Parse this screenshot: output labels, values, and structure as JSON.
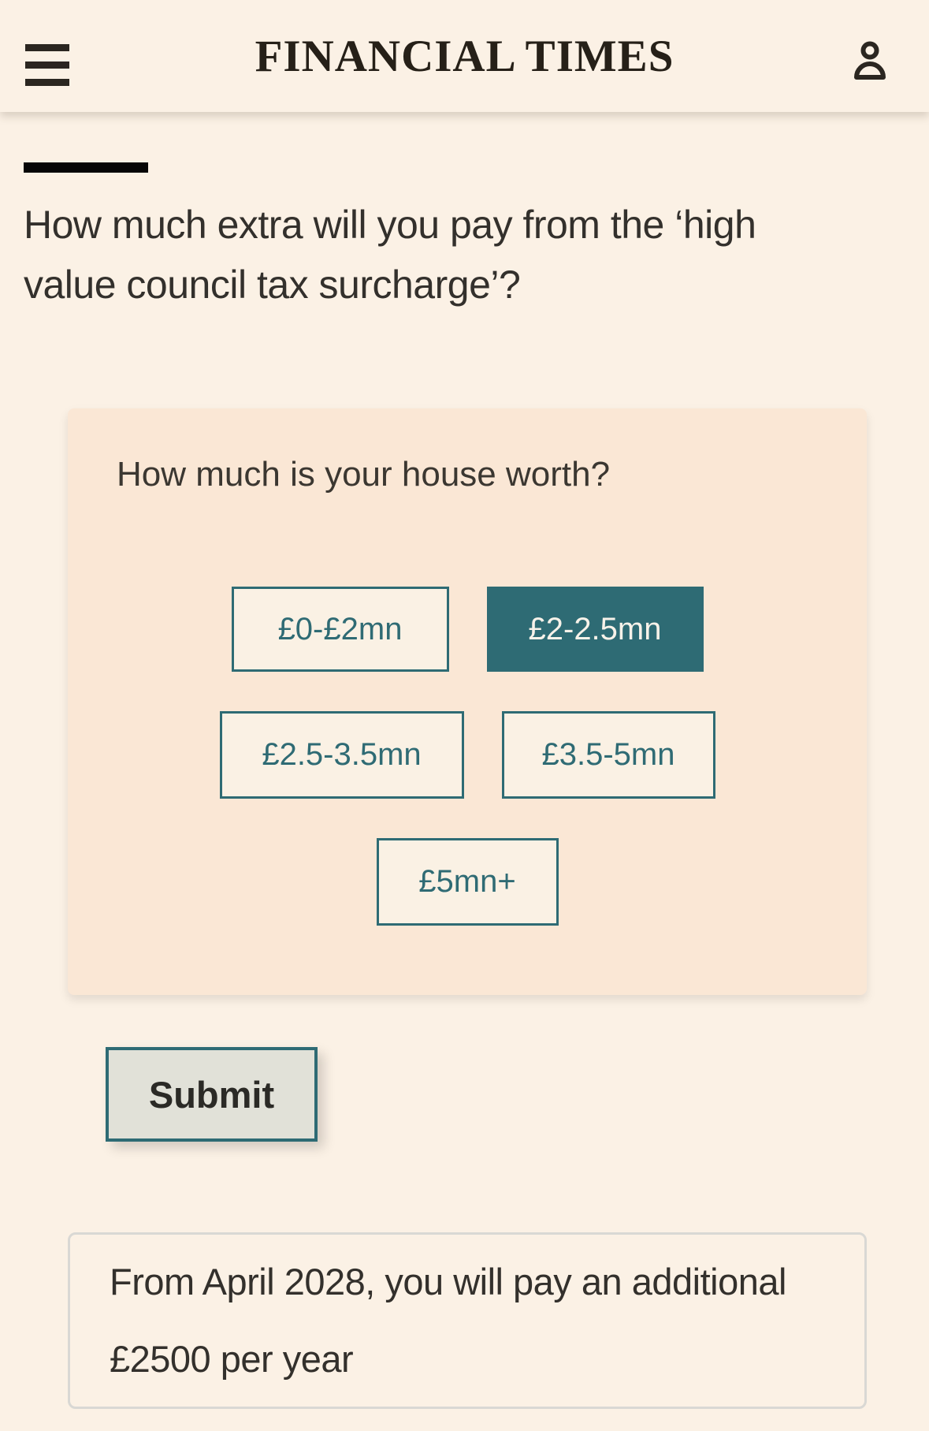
{
  "header": {
    "brand": "FINANCIAL TIMES",
    "icons": {
      "menu": "hamburger-icon",
      "account": "person-icon"
    }
  },
  "article": {
    "headline": "How much extra will you pay from the ‘high value council tax surcharge’?"
  },
  "calculator": {
    "question": "How much is your house worth?",
    "options": [
      {
        "label": "£0-£2mn",
        "selected": false
      },
      {
        "label": "£2-2.5mn",
        "selected": true
      },
      {
        "label": "£2.5-3.5mn",
        "selected": false
      },
      {
        "label": "£3.5-5mn",
        "selected": false
      },
      {
        "label": "£5mn+",
        "selected": false
      }
    ],
    "submit_label": "Submit",
    "result": "From April 2028, you will pay an additional £2500 per year"
  },
  "colors": {
    "page_bg": "#FBF1E5",
    "widget_bg": "#FAE7D5",
    "accent_teal": "#2E6B74",
    "option_bg": "#FAF1E4",
    "selected_text": "#F7F2E9",
    "submit_bg": "#E1E1D8",
    "text_dark": "#33302C",
    "kicker_bar": "#060606",
    "result_border": "#D9D8D4"
  }
}
